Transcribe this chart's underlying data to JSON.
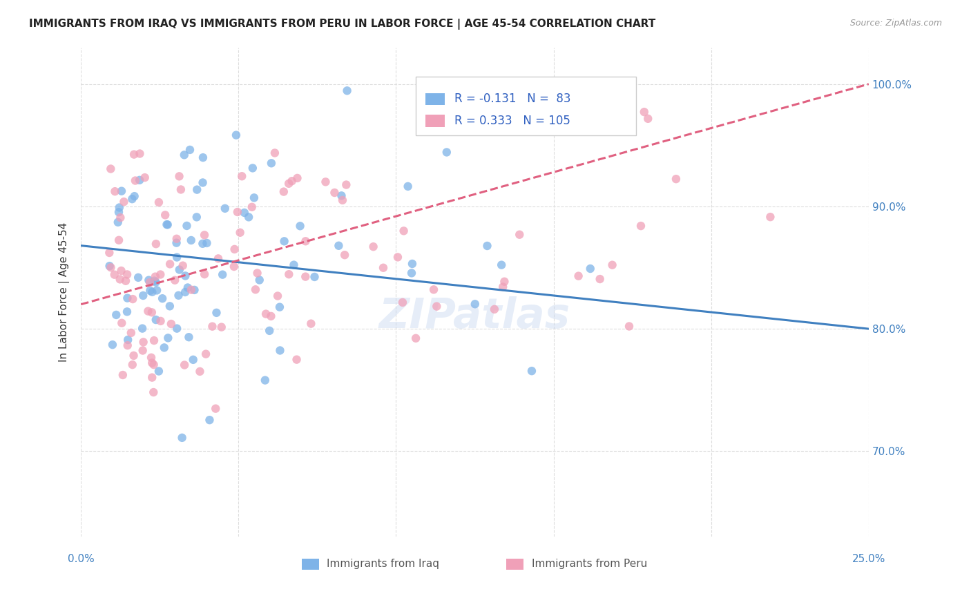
{
  "title": "IMMIGRANTS FROM IRAQ VS IMMIGRANTS FROM PERU IN LABOR FORCE | AGE 45-54 CORRELATION CHART",
  "source": "Source: ZipAtlas.com",
  "ylabel": "In Labor Force | Age 45-54",
  "ylabel_right_ticks": [
    "70.0%",
    "80.0%",
    "90.0%",
    "100.0%"
  ],
  "ylabel_right_vals": [
    0.7,
    0.8,
    0.9,
    1.0
  ],
  "iraq_R": "-0.131",
  "iraq_N": "83",
  "peru_R": "0.333",
  "peru_N": "105",
  "iraq_color": "#7EB3E8",
  "peru_color": "#F0A0B8",
  "iraq_line_color": "#4080C0",
  "peru_line_color": "#E06080",
  "background_color": "#FFFFFF",
  "grid_color": "#DDDDDD",
  "xmin": 0.0,
  "xmax": 0.25,
  "ymin": 0.63,
  "ymax": 1.03,
  "iraq_trendline_x": [
    0.0,
    0.25
  ],
  "iraq_trendline_y": [
    0.868,
    0.8
  ],
  "peru_trendline_x": [
    0.0,
    0.25
  ],
  "peru_trendline_y": [
    0.82,
    1.0
  ],
  "watermark": "ZIPatlas"
}
